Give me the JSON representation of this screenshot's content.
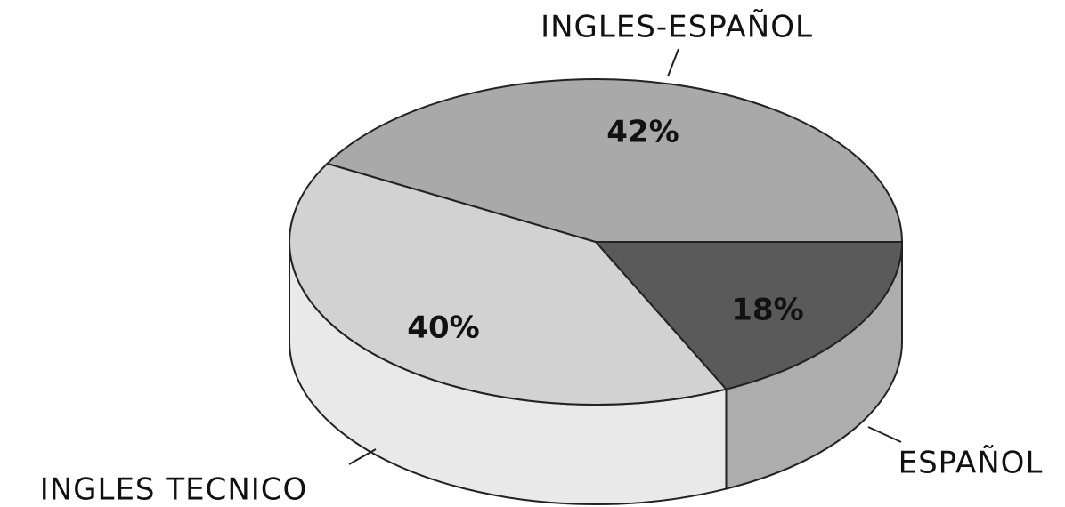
{
  "chart_data": {
    "type": "pie",
    "categories": [
      "ESPAÑOL",
      "INGLES TECNICO",
      "INGLES-ESPAÑOL"
    ],
    "values": [
      18,
      40,
      42
    ],
    "value_labels": [
      "18%",
      "40%",
      "42%"
    ],
    "colors": [
      "#5a5a5a",
      "#d2d2d2",
      "#a9a9a9"
    ]
  }
}
